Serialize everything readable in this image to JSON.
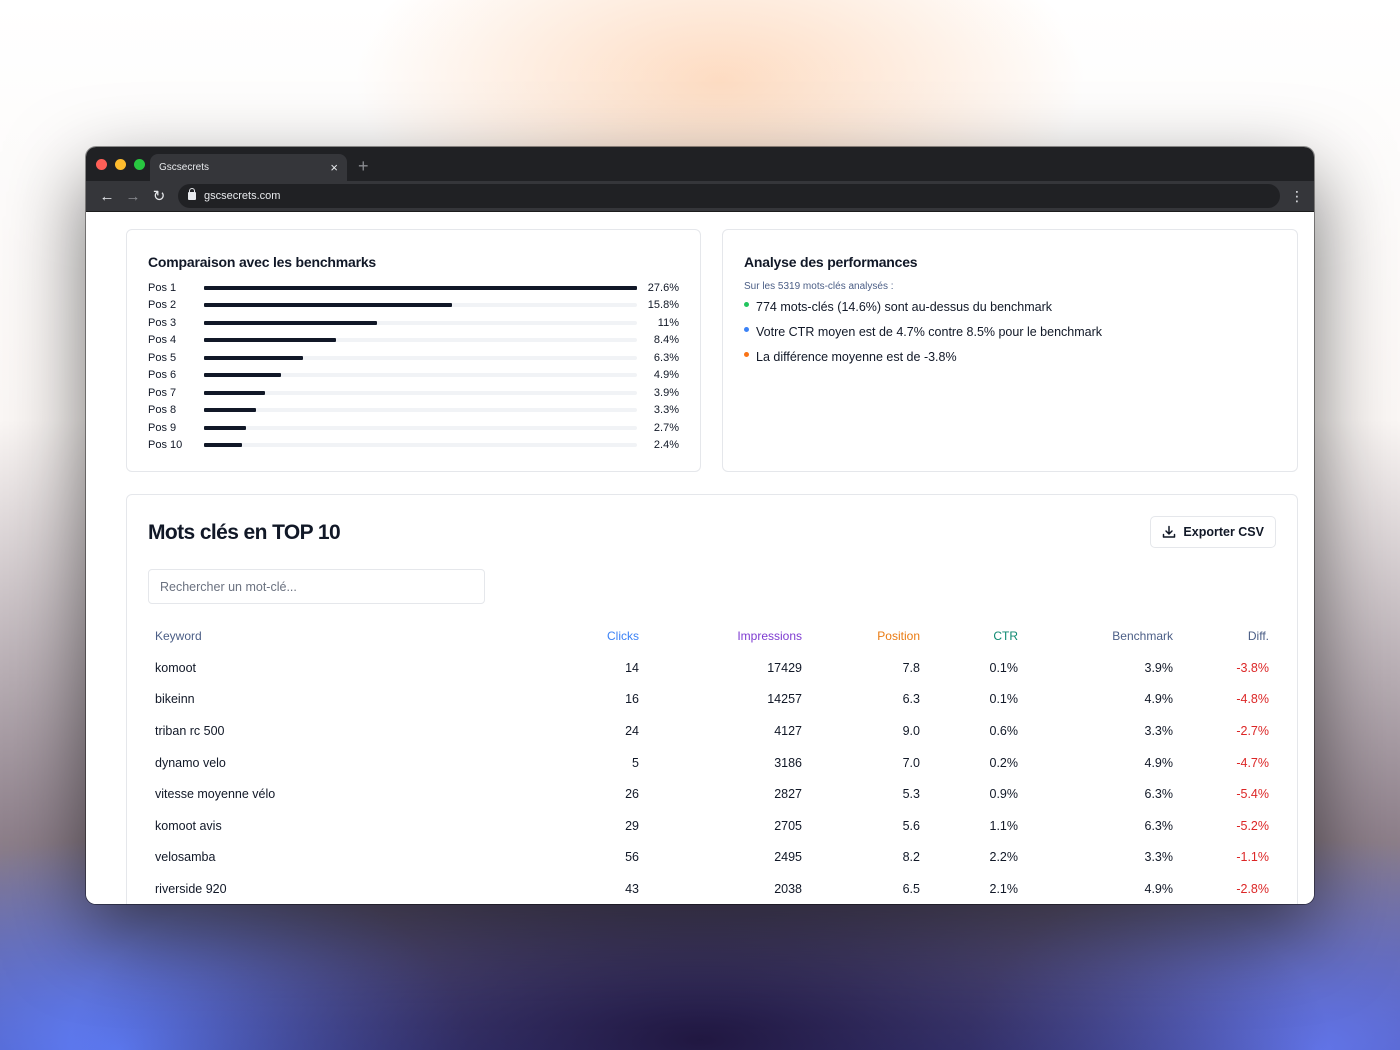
{
  "browser": {
    "tab_title": "Gscsecrets",
    "tab_close": "×",
    "new_tab": "+",
    "url": "gscsecrets.com"
  },
  "benchmarks": {
    "title": "Comparaison avec les benchmarks",
    "rows": [
      {
        "label": "Pos 1",
        "value": 27.6,
        "value_label": "27.6%"
      },
      {
        "label": "Pos 2",
        "value": 15.8,
        "value_label": "15.8%"
      },
      {
        "label": "Pos 3",
        "value": 11,
        "value_label": "11%"
      },
      {
        "label": "Pos 4",
        "value": 8.4,
        "value_label": "8.4%"
      },
      {
        "label": "Pos 5",
        "value": 6.3,
        "value_label": "6.3%"
      },
      {
        "label": "Pos 6",
        "value": 4.9,
        "value_label": "4.9%"
      },
      {
        "label": "Pos 7",
        "value": 3.9,
        "value_label": "3.9%"
      },
      {
        "label": "Pos 8",
        "value": 3.3,
        "value_label": "3.3%"
      },
      {
        "label": "Pos 9",
        "value": 2.7,
        "value_label": "2.7%"
      },
      {
        "label": "Pos 10",
        "value": 2.4,
        "value_label": "2.4%"
      }
    ],
    "max_value": 27.6
  },
  "performance": {
    "title": "Analyse des performances",
    "subtitle": "Sur les 5319 mots-clés analysés :",
    "items": [
      {
        "text": "774 mots-clés (14.6%) sont au-dessus du benchmark",
        "color": "#22c55e"
      },
      {
        "text": "Votre CTR moyen est de 4.7% contre 8.5% pour le benchmark",
        "color": "#3b82f6"
      },
      {
        "text": "La différence moyenne est de -3.8%",
        "color": "#f97316"
      }
    ]
  },
  "keywords": {
    "title": "Mots clés en TOP 10",
    "export_label": "Exporter CSV",
    "search_placeholder": "Rechercher un mot-clé...",
    "columns": [
      {
        "label": "Keyword",
        "color": "#4b5e86"
      },
      {
        "label": "Clicks",
        "color": "#3b82f6"
      },
      {
        "label": "Impressions",
        "color": "#7e3bd1"
      },
      {
        "label": "Position",
        "color": "#ea7b12"
      },
      {
        "label": "CTR",
        "color": "#0f8a72"
      },
      {
        "label": "Benchmark",
        "color": "#4b5e86"
      },
      {
        "label": "Diff.",
        "color": "#4b5e86"
      }
    ],
    "diff_color": "#dc2626",
    "rows": [
      [
        "komoot",
        "14",
        "17429",
        "7.8",
        "0.1%",
        "3.9%",
        "-3.8%"
      ],
      [
        "bikeinn",
        "16",
        "14257",
        "6.3",
        "0.1%",
        "4.9%",
        "-4.8%"
      ],
      [
        "triban rc 500",
        "24",
        "4127",
        "9.0",
        "0.6%",
        "3.3%",
        "-2.7%"
      ],
      [
        "dynamo velo",
        "5",
        "3186",
        "7.0",
        "0.2%",
        "4.9%",
        "-4.7%"
      ],
      [
        "vitesse moyenne vélo",
        "26",
        "2827",
        "5.3",
        "0.9%",
        "6.3%",
        "-5.4%"
      ],
      [
        "komoot avis",
        "29",
        "2705",
        "5.6",
        "1.1%",
        "6.3%",
        "-5.2%"
      ],
      [
        "velosamba",
        "56",
        "2495",
        "8.2",
        "2.2%",
        "3.3%",
        "-1.1%"
      ],
      [
        "riverside 920",
        "43",
        "2038",
        "6.5",
        "2.1%",
        "4.9%",
        "-2.8%"
      ]
    ]
  }
}
